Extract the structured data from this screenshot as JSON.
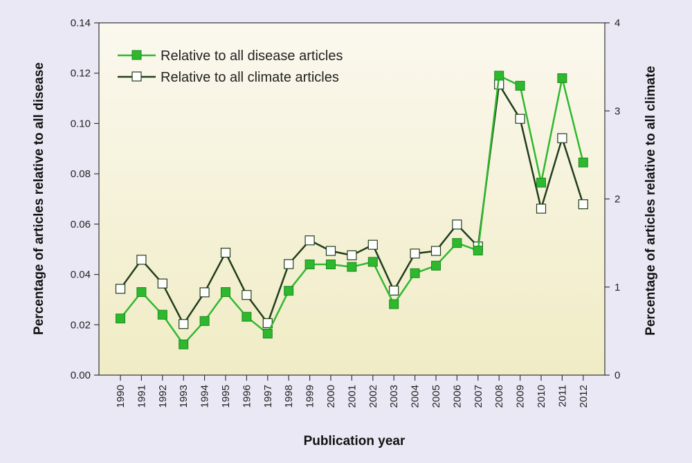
{
  "chart_data": {
    "type": "line",
    "title": "",
    "xlabel": "Publication year",
    "ylabel": "Percentage of articles relative to all disease",
    "y2label": "Percentage of articles relative to all climate",
    "ylim": [
      0,
      0.14
    ],
    "y2lim": [
      0,
      4
    ],
    "yticks": [
      "0.00",
      "0.02",
      "0.04",
      "0.06",
      "0.08",
      "0.10",
      "0.12",
      "0.14"
    ],
    "y2ticks": [
      "0",
      "1",
      "2",
      "3",
      "4"
    ],
    "categories": [
      "1990",
      "1991",
      "1992",
      "1993",
      "1994",
      "1995",
      "1996",
      "1997",
      "1998",
      "1999",
      "2000",
      "2001",
      "2002",
      "2003",
      "2004",
      "2005",
      "2006",
      "2007",
      "2008",
      "2009",
      "2010",
      "2011",
      "2012"
    ],
    "legend_position": "top-left",
    "series": [
      {
        "name": "Relative to all disease articles",
        "axis": "left",
        "color": "#2db82d",
        "marker": "filled-square",
        "values": [
          0.0225,
          0.033,
          0.024,
          0.0122,
          0.0215,
          0.033,
          0.0232,
          0.0165,
          0.0335,
          0.044,
          0.044,
          0.043,
          0.045,
          0.0282,
          0.0405,
          0.0435,
          0.0525,
          0.0495,
          0.119,
          0.115,
          0.0765,
          0.118,
          0.0845
        ]
      },
      {
        "name": "Relative to all climate articles",
        "axis": "right",
        "color": "#1f3d1a",
        "marker": "open-square",
        "values": [
          0.98,
          1.31,
          1.04,
          0.58,
          0.94,
          1.39,
          0.91,
          0.59,
          1.26,
          1.53,
          1.41,
          1.36,
          1.48,
          0.96,
          1.38,
          1.41,
          1.71,
          1.46,
          3.3,
          2.91,
          1.89,
          2.69,
          1.94
        ]
      }
    ]
  }
}
